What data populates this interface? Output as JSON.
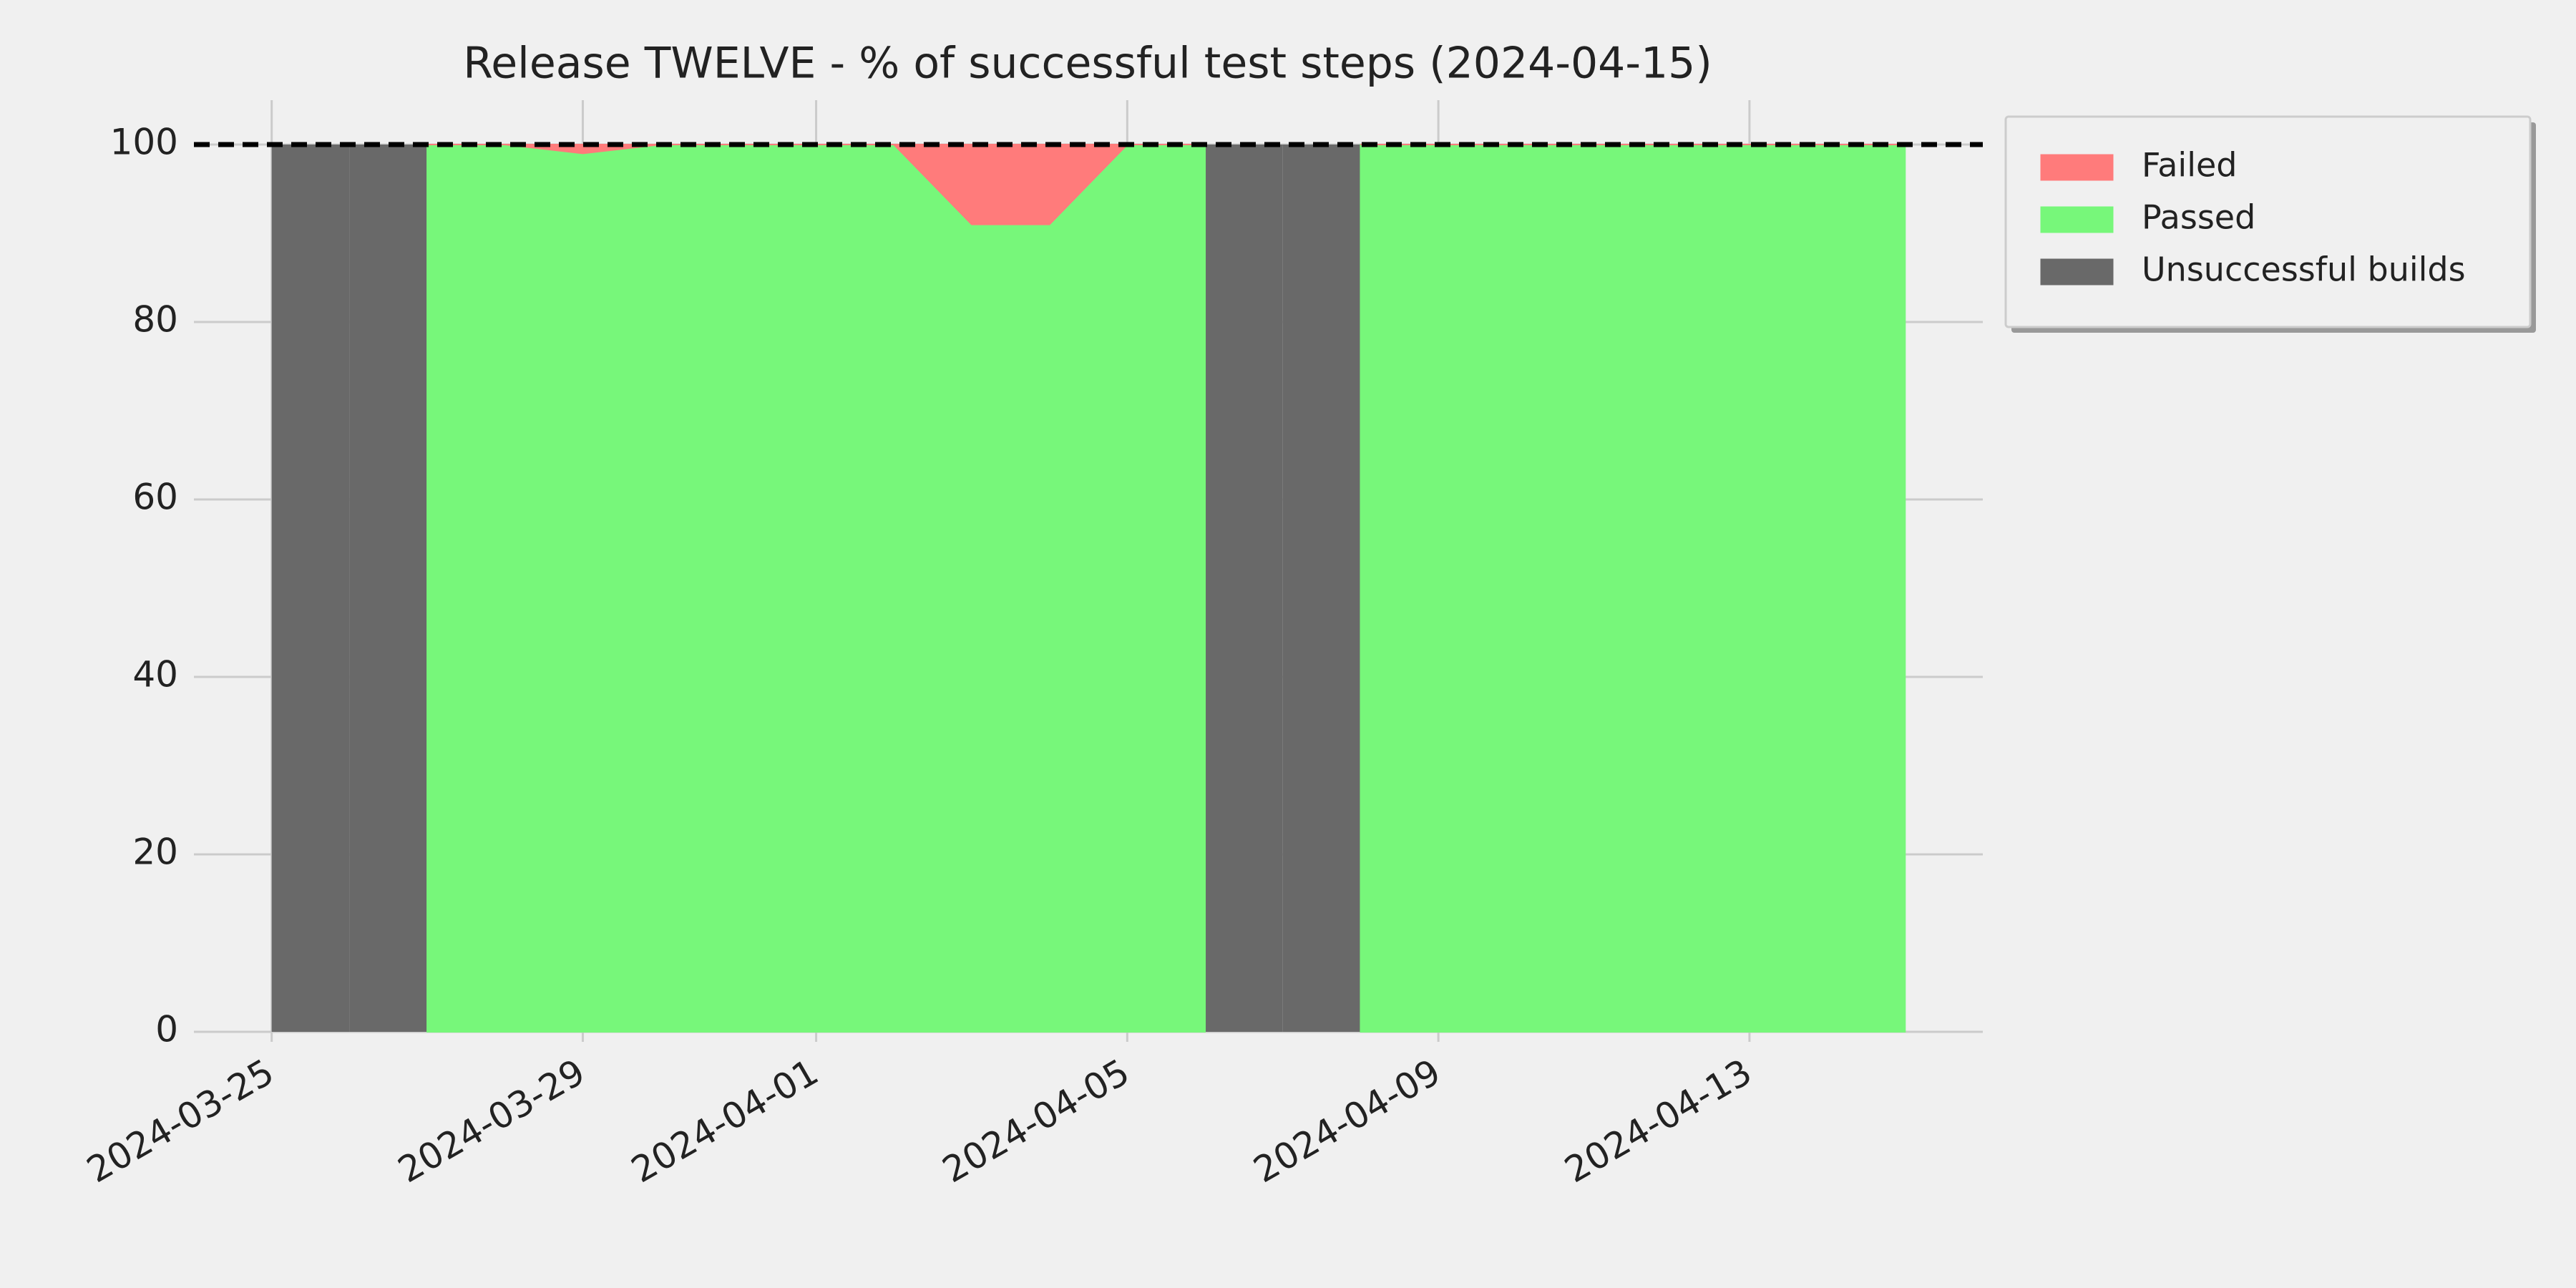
{
  "chart_data": {
    "type": "area",
    "title": "Release TWELVE - % of successful test steps (2024-04-15)",
    "x": [
      "2024-03-27",
      "2024-03-28",
      "2024-03-29",
      "2024-03-30",
      "2024-03-31",
      "2024-04-01",
      "2024-04-02",
      "2024-04-03",
      "2024-04-04",
      "2024-04-05",
      "2024-04-06",
      "2024-04-07",
      "2024-04-08",
      "2024-04-09",
      "2024-04-10",
      "2024-04-11",
      "2024-04-12",
      "2024-04-13",
      "2024-04-14",
      "2024-04-15"
    ],
    "series": [
      {
        "name": "Failed",
        "color": "#ff7b7b",
        "stacked_on": "Passed",
        "values": [
          0,
          0,
          1,
          0,
          0,
          0,
          0,
          9,
          9,
          0,
          0,
          null,
          0,
          0,
          0,
          0,
          0,
          0,
          0,
          0
        ]
      },
      {
        "name": "Passed",
        "color": "#77f77a",
        "values": [
          100,
          100,
          99,
          100,
          100,
          100,
          100,
          91,
          91,
          100,
          100,
          null,
          100,
          100,
          100,
          100,
          100,
          100,
          100,
          100
        ]
      }
    ],
    "unsuccessful_builds": {
      "name": "Unsuccessful builds",
      "color": "#696969",
      "dates": [
        "2024-03-25",
        "2024-03-26",
        "2024-04-06",
        "2024-04-07"
      ],
      "values": [
        100,
        100,
        100,
        100
      ]
    },
    "reference_line": 100,
    "xlim": [
      "2024-03-24",
      "2024-04-16"
    ],
    "xticks": [
      "2024-03-25",
      "2024-03-29",
      "2024-04-01",
      "2024-04-05",
      "2024-04-09",
      "2024-04-13"
    ],
    "ylim": [
      0,
      105
    ],
    "yticks": [
      0,
      20,
      40,
      60,
      80,
      100
    ],
    "grid": true,
    "legend_position": "right"
  }
}
